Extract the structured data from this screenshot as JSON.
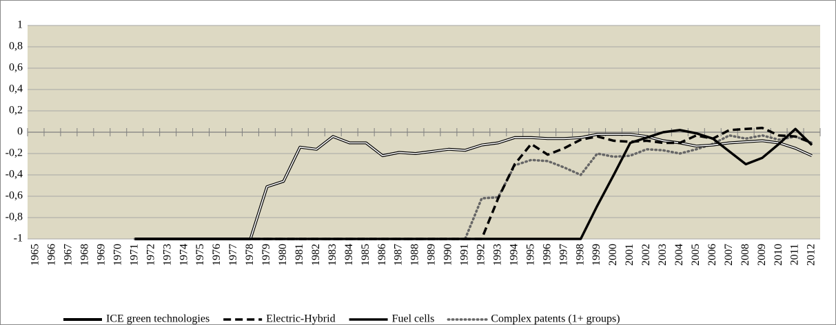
{
  "chart_data": {
    "type": "line",
    "categories": [
      "1965",
      "1966",
      "1967",
      "1968",
      "1969",
      "1970",
      "1971",
      "1972",
      "1973",
      "1974",
      "1975",
      "1976",
      "1977",
      "1978",
      "1979",
      "1980",
      "1981",
      "1982",
      "1983",
      "1984",
      "1985",
      "1986",
      "1987",
      "1988",
      "1989",
      "1990",
      "1991",
      "1992",
      "1993",
      "1994",
      "1995",
      "1996",
      "1997",
      "1998",
      "1999",
      "2000",
      "2001",
      "2002",
      "2003",
      "2004",
      "2005",
      "2006",
      "2007",
      "2008",
      "2009",
      "2010",
      "2011",
      "2012"
    ],
    "series": [
      {
        "name": "ICE green technologies",
        "color": "#000000",
        "style": "double",
        "values": [
          null,
          null,
          null,
          null,
          null,
          null,
          -1,
          -1,
          -1,
          -1,
          -1,
          -1,
          -1,
          -1,
          -0.51,
          -0.46,
          -0.14,
          -0.16,
          -0.04,
          -0.1,
          -0.1,
          -0.22,
          -0.19,
          -0.2,
          -0.18,
          -0.16,
          -0.17,
          -0.12,
          -0.1,
          -0.05,
          -0.05,
          -0.06,
          -0.06,
          -0.05,
          -0.02,
          -0.02,
          -0.02,
          -0.04,
          -0.08,
          -0.1,
          -0.13,
          -0.12,
          -0.1,
          -0.09,
          -0.08,
          -0.1,
          -0.15,
          -0.22
        ]
      },
      {
        "name": "Electric-Hybrid",
        "color": "#000000",
        "style": "dashed",
        "values": [
          null,
          null,
          null,
          null,
          null,
          null,
          -1,
          -1,
          -1,
          -1,
          -1,
          -1,
          -1,
          -1,
          -1,
          -1,
          -1,
          -1,
          -1,
          -1,
          -1,
          -1,
          -1,
          -1,
          -1,
          -1,
          -1,
          -1,
          -0.62,
          -0.3,
          -0.11,
          -0.21,
          -0.15,
          -0.07,
          -0.04,
          -0.08,
          -0.09,
          -0.08,
          -0.1,
          -0.1,
          -0.03,
          -0.06,
          0.02,
          0.03,
          0.04,
          -0.03,
          -0.04,
          -0.1
        ]
      },
      {
        "name": "Fuel cells",
        "color": "#000000",
        "style": "solid",
        "values": [
          null,
          null,
          null,
          null,
          null,
          null,
          -1,
          -1,
          -1,
          -1,
          -1,
          -1,
          -1,
          -1,
          -1,
          -1,
          -1,
          -1,
          -1,
          -1,
          -1,
          -1,
          -1,
          -1,
          -1,
          -1,
          -1,
          -1,
          -1,
          -1,
          -1,
          -1,
          -1,
          -1,
          -0.69,
          -0.4,
          -0.1,
          -0.05,
          0,
          0.02,
          -0.01,
          -0.06,
          -0.18,
          -0.3,
          -0.24,
          -0.11,
          0.03,
          -0.12
        ]
      },
      {
        "name": "Complex patents (1+ groups)",
        "color": "#666666",
        "style": "dotted",
        "values": [
          null,
          null,
          null,
          null,
          null,
          null,
          -1,
          -1,
          -1,
          -1,
          -1,
          -1,
          -1,
          -1,
          -1,
          -1,
          -1,
          -1,
          -1,
          -1,
          -1,
          -1,
          -1,
          -1,
          -1,
          -1,
          -1,
          -0.62,
          -0.61,
          -0.31,
          -0.26,
          -0.27,
          -0.33,
          -0.4,
          -0.2,
          -0.23,
          -0.22,
          -0.16,
          -0.17,
          -0.2,
          -0.16,
          -0.11,
          -0.03,
          -0.06,
          -0.03,
          -0.07,
          -0.04,
          -0.1
        ]
      }
    ],
    "ylim": [
      -1,
      1
    ],
    "yticks": [
      -1,
      {
        "value": -0.8,
        "label": "-0,8"
      },
      {
        "value": -0.6,
        "label": "-0,6"
      },
      {
        "value": -0.4,
        "label": "-0,4"
      },
      {
        "value": -0.2,
        "label": "-0,2"
      },
      0,
      {
        "value": 0.2,
        "label": "0,2"
      },
      {
        "value": 0.4,
        "label": "0,4"
      },
      {
        "value": 0.6,
        "label": "0,6"
      },
      {
        "value": 0.8,
        "label": "0,8"
      },
      1
    ],
    "grid": true,
    "legend": "bottom",
    "background": "#ddd9c3"
  }
}
